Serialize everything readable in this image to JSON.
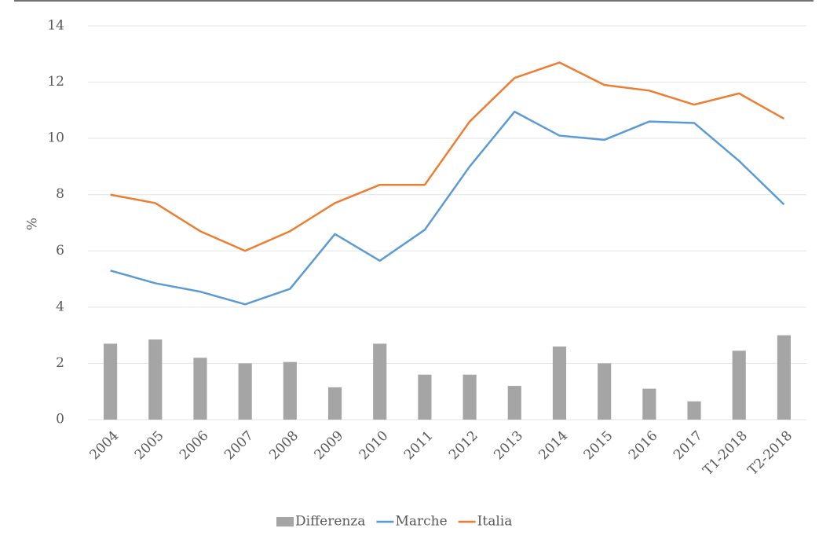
{
  "chart_data": {
    "type": "combo",
    "y_label": "%",
    "categories": [
      "2004",
      "2005",
      "2006",
      "2007",
      "2008",
      "2009",
      "2010",
      "2011",
      "2012",
      "2013",
      "2014",
      "2015",
      "2016",
      "2017",
      "T1-2018",
      "T2-2018"
    ],
    "series": [
      {
        "name": "Differenza",
        "type": "bar",
        "color": "#a5a5a5",
        "values": [
          2.7,
          2.85,
          2.2,
          2.0,
          2.05,
          1.15,
          2.7,
          1.6,
          1.6,
          1.2,
          2.6,
          2.0,
          1.1,
          0.65,
          2.45,
          3.0
        ]
      },
      {
        "name": "Marche",
        "type": "line",
        "color": "#5b9bd5",
        "values": [
          5.3,
          4.85,
          4.55,
          4.1,
          4.65,
          6.6,
          5.65,
          6.75,
          9.0,
          10.95,
          10.1,
          9.95,
          10.6,
          10.55,
          9.2,
          7.65
        ]
      },
      {
        "name": "Italia",
        "type": "line",
        "color": "#ed7d31",
        "values": [
          8.0,
          7.7,
          6.7,
          6.0,
          6.7,
          7.7,
          8.35,
          8.35,
          10.6,
          12.15,
          12.7,
          11.9,
          11.7,
          11.2,
          11.6,
          10.7
        ]
      }
    ],
    "ylim": [
      0,
      14
    ],
    "yticks": [
      0,
      2,
      4,
      6,
      8,
      10,
      12,
      14
    ],
    "grid": true,
    "legend": "bottom"
  }
}
